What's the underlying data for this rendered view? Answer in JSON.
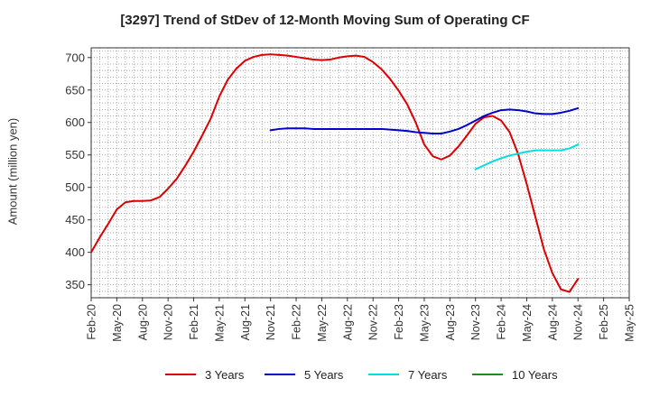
{
  "chart_data": {
    "type": "line",
    "title": "[3297]  Trend of StDev of 12-Month Moving Sum of Operating CF",
    "ylabel": "Amount (million yen)",
    "xlabel": "",
    "ylim": [
      330,
      715
    ],
    "yticks": [
      350,
      400,
      450,
      500,
      550,
      600,
      650,
      700
    ],
    "x_ticks": [
      "Feb-20",
      "May-20",
      "Aug-20",
      "Nov-20",
      "Feb-21",
      "May-21",
      "Aug-21",
      "Nov-21",
      "Feb-22",
      "May-22",
      "Aug-22",
      "Nov-22",
      "Feb-23",
      "May-23",
      "Aug-23",
      "Nov-23",
      "Feb-24",
      "May-24",
      "Aug-24",
      "Nov-24",
      "Feb-25",
      "May-25"
    ],
    "grid": true,
    "legend": "bottom",
    "series": [
      {
        "name": "3 Years",
        "color": "#dd0000",
        "x": [
          "Feb-20",
          "Mar-20",
          "Apr-20",
          "May-20",
          "Jun-20",
          "Jul-20",
          "Aug-20",
          "Sep-20",
          "Oct-20",
          "Nov-20",
          "Dec-20",
          "Jan-21",
          "Feb-21",
          "Mar-21",
          "Apr-21",
          "May-21",
          "Jun-21",
          "Jul-21",
          "Aug-21",
          "Sep-21",
          "Oct-21",
          "Nov-21",
          "Dec-21",
          "Jan-22",
          "Feb-22",
          "Mar-22",
          "Apr-22",
          "May-22",
          "Jun-22",
          "Jul-22",
          "Aug-22",
          "Sep-22",
          "Oct-22",
          "Nov-22",
          "Dec-22",
          "Jan-23",
          "Feb-23",
          "Mar-23",
          "Apr-23",
          "May-23",
          "Jun-23",
          "Jul-23",
          "Aug-23",
          "Sep-23",
          "Oct-23",
          "Nov-23",
          "Dec-23",
          "Jan-24",
          "Feb-24",
          "Mar-24",
          "Apr-24",
          "May-24",
          "Jun-24",
          "Jul-24",
          "Aug-24",
          "Sep-24",
          "Oct-24",
          "Nov-24"
        ],
        "values": [
          400,
          423,
          444,
          466,
          477,
          479,
          479,
          480,
          485,
          498,
          513,
          533,
          555,
          580,
          606,
          640,
          666,
          683,
          695,
          701,
          704,
          705,
          704,
          703,
          701,
          699,
          697,
          696,
          697,
          700,
          702,
          703,
          701,
          693,
          682,
          667,
          649,
          628,
          600,
          566,
          548,
          543,
          549,
          563,
          580,
          598,
          608,
          610,
          603,
          585,
          551,
          505,
          455,
          405,
          368,
          343,
          339,
          359
        ]
      },
      {
        "name": "5 Years",
        "color": "#0000cc",
        "x": [
          "Nov-21",
          "Dec-21",
          "Jan-22",
          "Feb-22",
          "Mar-22",
          "Apr-22",
          "May-22",
          "Jun-22",
          "Jul-22",
          "Aug-22",
          "Sep-22",
          "Oct-22",
          "Nov-22",
          "Dec-22",
          "Jan-23",
          "Feb-23",
          "Mar-23",
          "Apr-23",
          "May-23",
          "Jun-23",
          "Jul-23",
          "Aug-23",
          "Sep-23",
          "Oct-23",
          "Nov-23",
          "Dec-23",
          "Jan-24",
          "Feb-24",
          "Mar-24",
          "Apr-24",
          "May-24",
          "Jun-24",
          "Jul-24",
          "Aug-24",
          "Sep-24",
          "Oct-24",
          "Nov-24"
        ],
        "values": [
          588,
          590,
          591,
          591,
          591,
          590,
          590,
          590,
          590,
          590,
          590,
          590,
          590,
          590,
          589,
          588,
          587,
          585,
          584,
          583,
          583,
          586,
          590,
          596,
          603,
          610,
          615,
          619,
          620,
          619,
          617,
          614,
          613,
          613,
          615,
          618,
          622
        ]
      },
      {
        "name": "7 Years",
        "color": "#00e0e0",
        "x": [
          "Nov-23",
          "Dec-23",
          "Jan-24",
          "Feb-24",
          "Mar-24",
          "Apr-24",
          "May-24",
          "Jun-24",
          "Jul-24",
          "Aug-24",
          "Sep-24",
          "Oct-24",
          "Nov-24"
        ],
        "values": [
          528,
          534,
          540,
          545,
          549,
          552,
          555,
          557,
          557,
          557,
          557,
          560,
          566
        ]
      },
      {
        "name": "10 Years",
        "color": "#228822",
        "x": [],
        "values": []
      }
    ]
  }
}
